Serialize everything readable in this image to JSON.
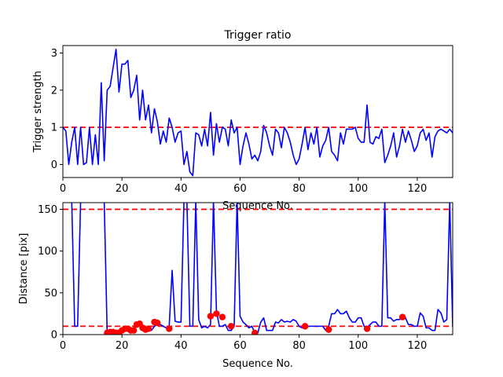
{
  "chart_data": [
    {
      "type": "line",
      "title": "Trigger ratio",
      "xlabel": "Sequence No.",
      "ylabel": "Trigger strength",
      "xlim": [
        0,
        132
      ],
      "ylim": [
        -0.35,
        3.2
      ],
      "xticks": [
        "0",
        "20",
        "40",
        "60",
        "80",
        "100",
        "120"
      ],
      "yticks": [
        "0",
        "1",
        "2",
        "3"
      ],
      "grid": false,
      "reference_line": {
        "y": 1.0,
        "style": "dashed",
        "color": "#ff0000"
      },
      "series": [
        {
          "color": "#0000ff",
          "x": [
            0,
            1,
            2,
            3,
            4,
            5,
            6,
            7,
            8,
            9,
            10,
            11,
            12,
            13,
            14,
            15,
            16,
            17,
            18,
            19,
            20,
            21,
            22,
            23,
            24,
            25,
            26,
            27,
            28,
            29,
            30,
            31,
            32,
            33,
            34,
            35,
            36,
            37,
            38,
            39,
            40,
            41,
            42,
            43,
            44,
            45,
            46,
            47,
            48,
            49,
            50,
            51,
            52,
            53,
            54,
            55,
            56,
            57,
            58,
            59,
            60,
            61,
            62,
            63,
            64,
            65,
            66,
            67,
            68,
            69,
            70,
            71,
            72,
            73,
            74,
            75,
            76,
            77,
            78,
            79,
            80,
            81,
            82,
            83,
            84,
            85,
            86,
            87,
            88,
            89,
            90,
            91,
            92,
            93,
            94,
            95,
            96,
            97,
            98,
            99,
            100,
            101,
            102,
            103,
            104,
            105,
            106,
            107,
            108,
            109,
            110,
            111,
            112,
            113,
            114,
            115,
            116,
            117,
            118,
            119,
            120,
            121,
            122,
            123,
            124,
            125,
            126,
            127,
            128,
            129,
            130,
            131,
            132
          ],
          "y": [
            1.0,
            0.9,
            0.0,
            0.6,
            1.0,
            0.0,
            1.0,
            0.0,
            0.05,
            1.0,
            0.0,
            0.8,
            0.0,
            2.2,
            0.1,
            2.0,
            2.1,
            2.6,
            3.1,
            1.95,
            2.7,
            2.7,
            2.8,
            1.8,
            2.0,
            2.4,
            1.2,
            2.0,
            1.2,
            1.6,
            0.85,
            1.5,
            1.15,
            0.55,
            0.9,
            0.6,
            1.25,
            1.0,
            0.6,
            0.85,
            0.9,
            0.0,
            0.35,
            -0.2,
            -0.3,
            0.85,
            0.8,
            0.5,
            0.95,
            0.5,
            1.4,
            0.25,
            1.1,
            0.6,
            1.0,
            0.95,
            0.5,
            1.2,
            0.85,
            1.0,
            0.0,
            0.5,
            0.85,
            0.55,
            0.15,
            0.25,
            0.1,
            0.35,
            1.05,
            0.85,
            0.5,
            0.25,
            0.95,
            0.85,
            0.45,
            1.0,
            0.85,
            0.6,
            0.25,
            0.0,
            0.15,
            0.55,
            1.0,
            0.4,
            0.85,
            0.55,
            1.0,
            0.2,
            0.5,
            0.65,
            1.0,
            0.35,
            0.25,
            0.1,
            0.85,
            0.55,
            0.95,
            0.95,
            0.95,
            1.0,
            0.7,
            0.6,
            0.6,
            1.6,
            0.6,
            0.55,
            0.75,
            0.7,
            0.95,
            0.05,
            0.25,
            0.5,
            0.85,
            0.2,
            0.5,
            0.95,
            0.6,
            0.9,
            0.65,
            0.35,
            0.5,
            0.85,
            0.95,
            0.65,
            0.85,
            0.2,
            0.75,
            0.9,
            0.95,
            0.9,
            0.85,
            0.95,
            0.85
          ]
        }
      ]
    },
    {
      "type": "line",
      "title": "",
      "xlabel": "Sequence No.",
      "ylabel": "Distance [pix]",
      "xlim": [
        0,
        132
      ],
      "ylim": [
        0,
        158
      ],
      "xticks": [
        "0",
        "20",
        "40",
        "60",
        "80",
        "100",
        "120"
      ],
      "yticks": [
        "0",
        "50",
        "100",
        "150"
      ],
      "grid": false,
      "reference_lines": [
        {
          "y": 150,
          "style": "dashed",
          "color": "#ff0000"
        },
        {
          "y": 10,
          "style": "dashed",
          "color": "#ff0000"
        }
      ],
      "series": [
        {
          "color": "#0000ff",
          "x": [
            0,
            1,
            2,
            3,
            4,
            5,
            6,
            7,
            8,
            9,
            10,
            11,
            12,
            13,
            14,
            15,
            16,
            17,
            18,
            19,
            20,
            21,
            22,
            23,
            24,
            25,
            26,
            27,
            28,
            29,
            30,
            31,
            32,
            33,
            34,
            35,
            36,
            37,
            38,
            39,
            40,
            41,
            42,
            43,
            44,
            45,
            46,
            47,
            48,
            49,
            50,
            51,
            52,
            53,
            54,
            55,
            56,
            57,
            58,
            59,
            60,
            61,
            62,
            63,
            64,
            65,
            66,
            67,
            68,
            69,
            70,
            71,
            72,
            73,
            74,
            75,
            76,
            77,
            78,
            79,
            80,
            81,
            82,
            83,
            84,
            85,
            86,
            87,
            88,
            89,
            90,
            91,
            92,
            93,
            94,
            95,
            96,
            97,
            98,
            99,
            100,
            101,
            102,
            103,
            104,
            105,
            106,
            107,
            108,
            109,
            110,
            111,
            112,
            113,
            114,
            115,
            116,
            117,
            118,
            119,
            120,
            121,
            122,
            123,
            124,
            125,
            126,
            127,
            128,
            129,
            130,
            131,
            132
          ],
          "y": [
            160,
            160,
            160,
            160,
            10,
            10,
            160,
            160,
            160,
            160,
            160,
            160,
            160,
            160,
            160,
            2,
            3,
            3,
            3,
            5,
            5,
            5,
            5,
            6,
            8,
            10,
            10,
            10,
            8,
            6,
            5,
            10,
            12,
            12,
            10,
            8,
            10,
            77,
            16,
            15,
            15,
            160,
            160,
            10,
            10,
            160,
            18,
            8,
            10,
            8,
            12,
            160,
            28,
            10,
            10,
            12,
            5,
            5,
            10,
            160,
            22,
            15,
            12,
            8,
            10,
            2,
            2,
            15,
            20,
            5,
            5,
            5,
            15,
            14,
            18,
            15,
            16,
            15,
            18,
            16,
            10,
            8,
            8,
            10,
            10,
            10,
            10,
            10,
            10,
            5,
            10,
            25,
            25,
            30,
            25,
            25,
            28,
            20,
            15,
            15,
            20,
            20,
            10,
            8,
            12,
            15,
            15,
            10,
            10,
            160,
            20,
            20,
            16,
            18,
            18,
            20,
            20,
            12,
            12,
            10,
            10,
            26,
            22,
            8,
            8,
            5,
            5,
            30,
            26,
            15,
            18,
            160,
            10
          ],
          "markers": false
        },
        {
          "name": "",
          "color": "#ff0000",
          "marker": "circle",
          "x": [
            15,
            16,
            17,
            18,
            19,
            20,
            21,
            22,
            23,
            24,
            25,
            26,
            27,
            28,
            29,
            31,
            32,
            36,
            50,
            52,
            54,
            57,
            65,
            82,
            90,
            103,
            115
          ],
          "y": [
            2,
            3,
            3,
            2,
            2,
            5,
            7,
            7,
            5,
            5,
            12,
            13,
            8,
            6,
            7,
            15,
            14,
            7,
            22,
            25,
            21,
            10,
            2,
            10,
            6,
            7,
            21
          ]
        }
      ]
    }
  ]
}
